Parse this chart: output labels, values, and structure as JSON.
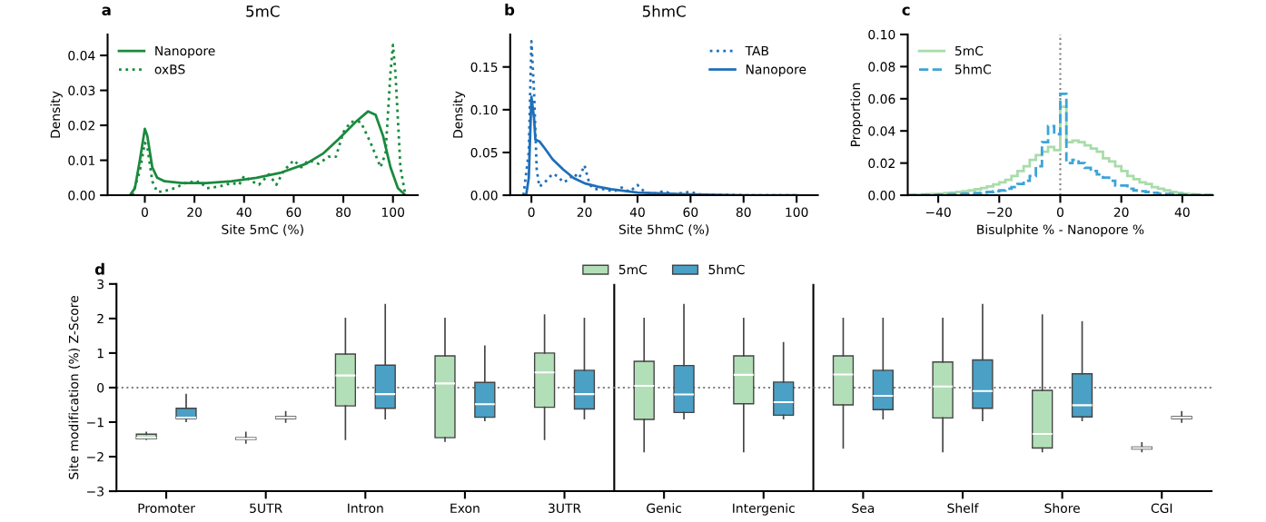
{
  "chart_data": [
    {
      "type": "line",
      "title": "5mC",
      "annotations": [
        "a"
      ],
      "xlabel": "Site 5mC (%)",
      "ylabel": "Density",
      "xlim": [
        -15,
        110
      ],
      "ylim": [
        0,
        0.046
      ],
      "xticks": [
        0,
        20,
        40,
        60,
        80,
        100
      ],
      "yticks": [
        {
          "value": 0,
          "label": "0.00"
        },
        {
          "value": 0.01,
          "label": "0.01"
        },
        {
          "value": 0.02,
          "label": "0.02"
        },
        {
          "value": 0.03,
          "label": "0.03"
        },
        {
          "value": 0.04,
          "label": "0.04"
        }
      ],
      "legend": "top left",
      "grid": false,
      "series": [
        {
          "name": "Nanopore",
          "color": "#1a8a3e",
          "line_style": "solid",
          "x": [
            -6,
            -4,
            -2,
            0,
            1,
            3,
            5,
            8,
            15,
            25,
            35,
            45,
            55,
            65,
            72,
            78,
            85,
            90,
            93,
            96,
            99,
            102,
            105
          ],
          "values": [
            0,
            0.002,
            0.01,
            0.019,
            0.017,
            0.008,
            0.005,
            0.004,
            0.0035,
            0.0035,
            0.004,
            0.005,
            0.0065,
            0.009,
            0.012,
            0.016,
            0.021,
            0.024,
            0.023,
            0.017,
            0.008,
            0.002,
            0
          ]
        },
        {
          "name": "oxBS",
          "color": "#1a8a3e",
          "line_style": "dotted",
          "x": [
            -5,
            -2,
            0,
            1,
            3,
            5,
            7,
            12,
            18,
            20,
            22,
            25,
            30,
            35,
            38,
            40,
            43,
            46,
            50,
            53,
            56,
            60,
            63,
            66,
            70,
            74,
            77,
            80,
            83,
            87,
            91,
            95,
            97,
            99,
            100,
            101,
            103,
            105
          ],
          "values": [
            0,
            0.007,
            0.015,
            0.014,
            0.004,
            0.001,
            0.001,
            0.002,
            0.004,
            0.0035,
            0.004,
            0.002,
            0.0025,
            0.0035,
            0.003,
            0.0055,
            0.004,
            0.003,
            0.006,
            0.003,
            0.007,
            0.01,
            0.008,
            0.01,
            0.009,
            0.011,
            0.011,
            0.018,
            0.021,
            0.021,
            0.015,
            0.008,
            0.012,
            0.035,
            0.043,
            0.035,
            0.008,
            0
          ]
        }
      ]
    },
    {
      "type": "line",
      "title": "5hmC",
      "annotations": [
        "b"
      ],
      "xlabel": "Site 5hmC (%)",
      "ylabel": "Density",
      "xlim": [
        -8,
        108
      ],
      "ylim": [
        0,
        0.188
      ],
      "xticks": [
        0,
        20,
        40,
        60,
        80,
        100
      ],
      "yticks": [
        {
          "value": 0,
          "label": "0.00"
        },
        {
          "value": 0.05,
          "label": "0.05"
        },
        {
          "value": 0.1,
          "label": "0.10"
        },
        {
          "value": 0.15,
          "label": "0.15"
        }
      ],
      "legend": "top right",
      "grid": false,
      "series": [
        {
          "name": "TAB",
          "color": "#1f6fb9",
          "line_style": "dotted",
          "x": [
            -3,
            -1,
            0,
            1,
            2,
            3,
            5,
            8,
            10,
            12,
            14,
            16,
            18,
            20,
            22,
            24,
            28,
            31,
            34,
            37,
            40,
            43,
            47,
            50,
            53,
            60,
            63,
            80,
            100
          ],
          "values": [
            0,
            0.05,
            0.18,
            0.12,
            0.03,
            0.01,
            0.015,
            0.025,
            0.022,
            0.015,
            0.018,
            0.025,
            0.02,
            0.035,
            0.012,
            0.007,
            0.007,
            0.004,
            0.009,
            0.004,
            0.012,
            0.003,
            0.002,
            0.005,
            0.001,
            0.004,
            0.001,
            0,
            0
          ]
        },
        {
          "name": "Nanopore",
          "color": "#1f6fb9",
          "line_style": "solid",
          "x": [
            -2,
            -1,
            0,
            1,
            1.5,
            3,
            5,
            8,
            12,
            16,
            20,
            25,
            30,
            40,
            50,
            60,
            80,
            100
          ],
          "values": [
            0,
            0.02,
            0.115,
            0.09,
            0.065,
            0.063,
            0.055,
            0.042,
            0.03,
            0.02,
            0.014,
            0.01,
            0.007,
            0.003,
            0.002,
            0.001,
            0,
            0
          ]
        }
      ]
    },
    {
      "type": "histogram",
      "annotations": [
        "c"
      ],
      "xlabel": "Bisulphite % - Nanopore %",
      "ylabel": "Proportion",
      "xlim": [
        -50,
        50
      ],
      "ylim": [
        0,
        0.1
      ],
      "xticks": [
        {
          "value": -40,
          "label": "−40"
        },
        {
          "value": -20,
          "label": "−20"
        },
        0,
        20,
        40
      ],
      "yticks": [
        {
          "value": 0,
          "label": "0.00"
        },
        {
          "value": 0.02,
          "label": "0.02"
        },
        {
          "value": 0.04,
          "label": "0.04"
        },
        {
          "value": 0.06,
          "label": "0.06"
        },
        {
          "value": 0.08,
          "label": "0.08"
        },
        {
          "value": 0.1,
          "label": "0.10"
        }
      ],
      "legend": "top left",
      "grid": false,
      "ref_lines": [
        {
          "axis": "x",
          "value": 0,
          "color": "#808080",
          "line_style": "dotted"
        }
      ],
      "bins": [
        -50,
        -48,
        -46,
        -44,
        -42,
        -40,
        -38,
        -36,
        -34,
        -32,
        -30,
        -28,
        -26,
        -24,
        -22,
        -20,
        -18,
        -16,
        -14,
        -12,
        -10,
        -8,
        -6,
        -4,
        -2,
        0,
        2,
        4,
        6,
        8,
        10,
        12,
        14,
        16,
        18,
        20,
        22,
        24,
        26,
        28,
        30,
        32,
        34,
        36,
        38,
        40,
        42,
        44,
        46,
        48,
        50
      ],
      "series": [
        {
          "name": "5mC",
          "color": "#a8dcaa",
          "line_style": "solid",
          "values": [
            0.0003,
            0.0004,
            0.0005,
            0.0006,
            0.0008,
            0.001,
            0.0013,
            0.0016,
            0.002,
            0.0025,
            0.003,
            0.0037,
            0.0045,
            0.0055,
            0.0067,
            0.008,
            0.0095,
            0.012,
            0.015,
            0.018,
            0.022,
            0.025,
            0.027,
            0.03,
            0.028,
            0.055,
            0.033,
            0.034,
            0.033,
            0.031,
            0.029,
            0.027,
            0.023,
            0.021,
            0.018,
            0.015,
            0.012,
            0.01,
            0.008,
            0.007,
            0.005,
            0.004,
            0.003,
            0.002,
            0.0015,
            0.001,
            0.0007,
            0.0005,
            0.0003,
            0.0002
          ]
        },
        {
          "name": "5hmC",
          "color": "#3ba4d8",
          "line_style": "dashed",
          "values": [
            0.0001,
            0.0001,
            0.0002,
            0.0002,
            0.0003,
            0.0004,
            0.0005,
            0.0006,
            0.0007,
            0.0009,
            0.001,
            0.0013,
            0.0017,
            0.002,
            0.0025,
            0.003,
            0.004,
            0.005,
            0.007,
            0.009,
            0.012,
            0.018,
            0.033,
            0.043,
            0.038,
            0.063,
            0.02,
            0.022,
            0.02,
            0.017,
            0.015,
            0.013,
            0.011,
            0.009,
            0.006,
            0.006,
            0.004,
            0.003,
            0.0025,
            0.002,
            0.0015,
            0.001,
            0.0008,
            0.0006,
            0.0005,
            0.0004,
            0.0003,
            0.0002,
            0.0001,
            0.0001
          ]
        }
      ]
    },
    {
      "type": "box",
      "annotations": [
        "d"
      ],
      "ylabel": "Site modification (%) Z-Score",
      "ylim": [
        -3,
        3
      ],
      "yticks": [
        {
          "value": -3,
          "label": "−3"
        },
        {
          "value": -2,
          "label": "−2"
        },
        {
          "value": -1,
          "label": "−1"
        },
        0,
        1,
        2,
        3
      ],
      "legend": "top",
      "grid": false,
      "categories": [
        "Promoter",
        "5UTR",
        "Intron",
        "Exon",
        "3UTR",
        "Genic",
        "Intergenic",
        "Sea",
        "Shelf",
        "Shore",
        "CGI"
      ],
      "ref_lines": [
        {
          "axis": "y",
          "value": 0,
          "color": "#808080",
          "line_style": "dotted"
        }
      ],
      "series": [
        {
          "name": "5mC",
          "color": "#b3dfb8",
          "boxes": [
            {
              "low": -1.5,
              "q1": -1.48,
              "median": -1.45,
              "q3": -1.35,
              "high": -1.3
            },
            {
              "low": -1.6,
              "q1": -1.5,
              "median": -1.48,
              "q3": -1.45,
              "high": -1.3
            },
            {
              "low": -1.5,
              "q1": -0.53,
              "median": 0.35,
              "q3": 0.97,
              "high": 2.0
            },
            {
              "low": -1.55,
              "q1": -1.45,
              "median": 0.12,
              "q3": 0.92,
              "high": 2.0
            },
            {
              "low": -1.5,
              "q1": -0.57,
              "median": 0.44,
              "q3": 1.0,
              "high": 2.1
            },
            {
              "low": -1.85,
              "q1": -0.92,
              "median": 0.05,
              "q3": 0.76,
              "high": 2.0
            },
            {
              "low": -1.85,
              "q1": -0.47,
              "median": 0.37,
              "q3": 0.92,
              "high": 2.0
            },
            {
              "low": -1.75,
              "q1": -0.5,
              "median": 0.38,
              "q3": 0.92,
              "high": 2.0
            },
            {
              "low": -1.85,
              "q1": -0.88,
              "median": 0.03,
              "q3": 0.74,
              "high": 2.0
            },
            {
              "low": -1.85,
              "q1": -1.75,
              "median": -1.34,
              "q3": -0.08,
              "high": 2.1
            },
            {
              "low": -1.85,
              "q1": -1.78,
              "median": -1.75,
              "q3": -1.72,
              "high": -1.6
            }
          ]
        },
        {
          "name": "5hmC",
          "color": "#4ba0c5",
          "boxes": [
            {
              "low": -0.98,
              "q1": -0.9,
              "median": -0.87,
              "q3": -0.6,
              "high": -0.2
            },
            {
              "low": -1.0,
              "q1": -0.9,
              "median": -0.87,
              "q3": -0.84,
              "high": -0.7
            },
            {
              "low": -0.9,
              "q1": -0.6,
              "median": -0.19,
              "q3": 0.65,
              "high": 2.4
            },
            {
              "low": -0.95,
              "q1": -0.86,
              "median": -0.48,
              "q3": 0.15,
              "high": 1.2
            },
            {
              "low": -0.9,
              "q1": -0.62,
              "median": -0.19,
              "q3": 0.5,
              "high": 2.0
            },
            {
              "low": -0.9,
              "q1": -0.72,
              "median": -0.2,
              "q3": 0.64,
              "high": 2.4
            },
            {
              "low": -0.9,
              "q1": -0.8,
              "median": -0.42,
              "q3": 0.16,
              "high": 1.3
            },
            {
              "low": -0.9,
              "q1": -0.64,
              "median": -0.24,
              "q3": 0.5,
              "high": 2.0
            },
            {
              "low": -0.95,
              "q1": -0.6,
              "median": -0.1,
              "q3": 0.8,
              "high": 2.4
            },
            {
              "low": -0.95,
              "q1": -0.85,
              "median": -0.51,
              "q3": 0.4,
              "high": 1.9
            },
            {
              "low": -1.0,
              "q1": -0.9,
              "median": -0.87,
              "q3": -0.84,
              "high": -0.7
            }
          ]
        }
      ]
    }
  ]
}
